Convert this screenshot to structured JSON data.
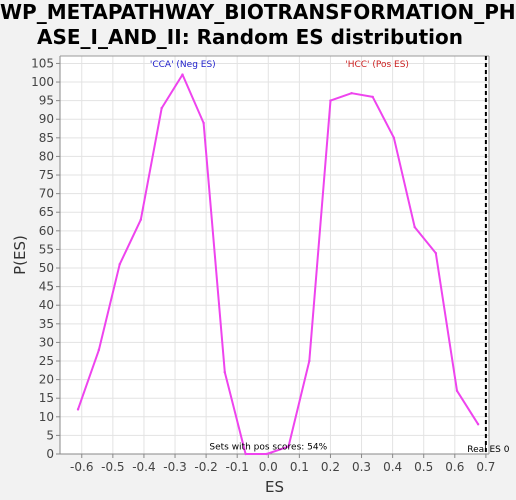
{
  "title_lines": [
    "WP_METAPATHWAY_BIOTRANSFORMATION_PH",
    "ASE_I_AND_II: Random ES distribution"
  ],
  "chart_data": {
    "type": "line",
    "xlabel": "ES",
    "ylabel": "P(ES)",
    "xlim": [
      -0.67,
      0.71
    ],
    "ylim": [
      0,
      107
    ],
    "xticks": [
      -0.6,
      -0.5,
      -0.4,
      -0.3,
      -0.2,
      -0.1,
      0.0,
      0.1,
      0.2,
      0.3,
      0.4,
      0.5,
      0.6,
      0.7
    ],
    "xtick_labels": [
      "-0.6",
      "-0.5",
      "-0.4",
      "-0.3",
      "-0.2",
      "-0.1",
      "0.0",
      "0.1",
      "0.2",
      "0.3",
      "0.4",
      "0.5",
      "0.6",
      "0.7"
    ],
    "yticks": [
      0,
      5,
      10,
      15,
      20,
      25,
      30,
      35,
      40,
      45,
      50,
      55,
      60,
      65,
      70,
      75,
      80,
      85,
      90,
      95,
      100,
      105
    ],
    "series": [
      {
        "color": "#ee44ee",
        "x": [
          -0.612,
          -0.545,
          -0.478,
          -0.41,
          -0.343,
          -0.276,
          -0.208,
          -0.14,
          -0.073,
          -0.005,
          0.065,
          0.132,
          0.2,
          0.268,
          0.336,
          0.404,
          0.471,
          0.539,
          0.607,
          0.675
        ],
        "y": [
          12,
          28,
          51,
          63,
          93,
          102,
          89,
          22,
          0,
          0,
          2,
          25,
          95,
          97,
          96,
          85,
          61,
          54,
          17,
          8
        ]
      }
    ],
    "annotations": [
      {
        "text": "'CCA' (Neg ES)",
        "x": -0.275,
        "y": 104,
        "color": "#2222cc"
      },
      {
        "text": "'HCC' (Pos ES)",
        "x": 0.35,
        "y": 104,
        "color": "#cc2222"
      },
      {
        "text": "Sets with pos scores: 54%",
        "x": 0.0,
        "y": 1.2,
        "color": "#000000"
      },
      {
        "text": "Real ES 0",
        "x": 0.64,
        "y": 0.5,
        "color": "#000000"
      }
    ],
    "real_es_line": {
      "x": 0.7,
      "style": "dashed",
      "color": "#000000"
    },
    "grid": true
  }
}
